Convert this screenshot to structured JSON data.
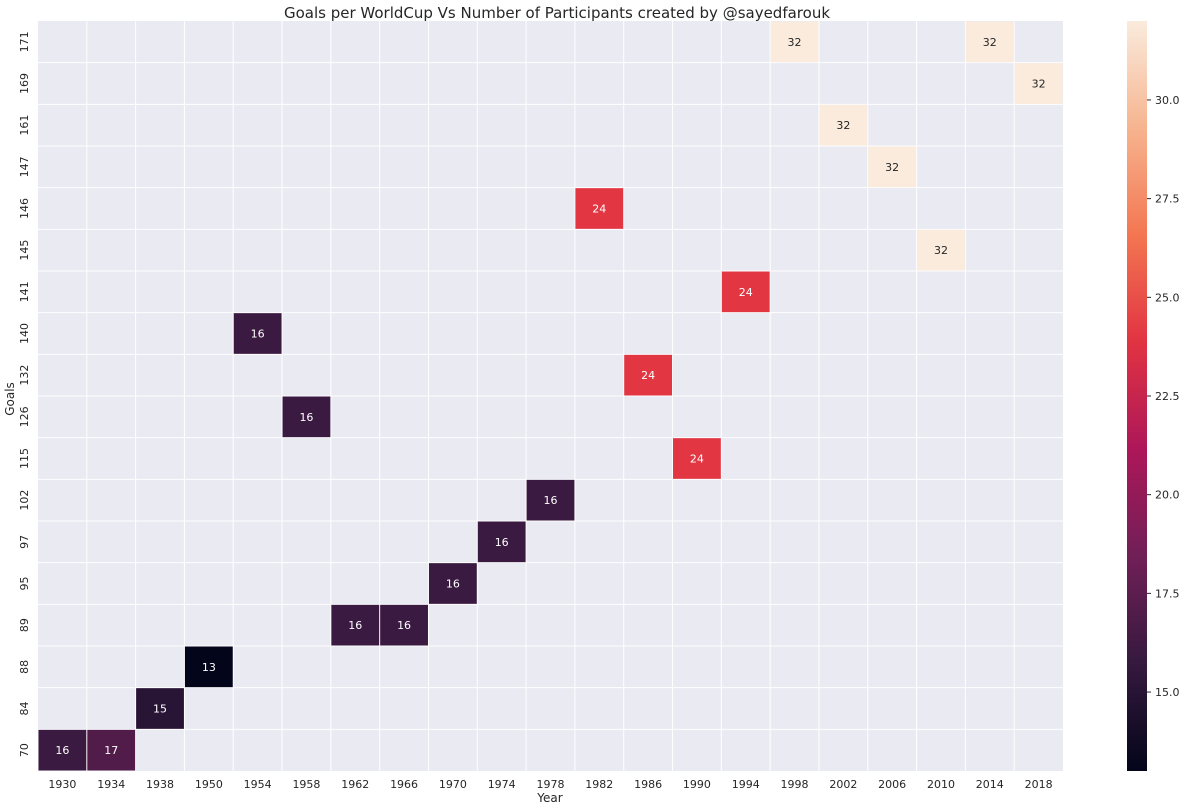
{
  "chart_data": {
    "type": "heatmap",
    "title": "Goals per WorldCup Vs Number of Participants       created by @sayedfarouk",
    "xlabel": "Year",
    "ylabel": "Goals",
    "x_categories": [
      "1930",
      "1934",
      "1938",
      "1950",
      "1954",
      "1958",
      "1962",
      "1966",
      "1970",
      "1974",
      "1978",
      "1982",
      "1986",
      "1990",
      "1994",
      "1998",
      "2002",
      "2006",
      "2010",
      "2014",
      "2018"
    ],
    "y_categories": [
      "171",
      "169",
      "161",
      "147",
      "146",
      "145",
      "141",
      "140",
      "132",
      "126",
      "115",
      "102",
      "97",
      "95",
      "89",
      "88",
      "84",
      "70"
    ],
    "cells": [
      {
        "x": "1930",
        "y": "70",
        "value": 16
      },
      {
        "x": "1934",
        "y": "70",
        "value": 17
      },
      {
        "x": "1938",
        "y": "84",
        "value": 15
      },
      {
        "x": "1950",
        "y": "88",
        "value": 13
      },
      {
        "x": "1954",
        "y": "140",
        "value": 16
      },
      {
        "x": "1958",
        "y": "126",
        "value": 16
      },
      {
        "x": "1962",
        "y": "89",
        "value": 16
      },
      {
        "x": "1966",
        "y": "89",
        "value": 16
      },
      {
        "x": "1970",
        "y": "95",
        "value": 16
      },
      {
        "x": "1974",
        "y": "97",
        "value": 16
      },
      {
        "x": "1978",
        "y": "102",
        "value": 16
      },
      {
        "x": "1982",
        "y": "146",
        "value": 24
      },
      {
        "x": "1986",
        "y": "132",
        "value": 24
      },
      {
        "x": "1990",
        "y": "115",
        "value": 24
      },
      {
        "x": "1994",
        "y": "141",
        "value": 24
      },
      {
        "x": "1998",
        "y": "171",
        "value": 32
      },
      {
        "x": "2002",
        "y": "161",
        "value": 32
      },
      {
        "x": "2006",
        "y": "147",
        "value": 32
      },
      {
        "x": "2010",
        "y": "145",
        "value": 32
      },
      {
        "x": "2014",
        "y": "171",
        "value": 32
      },
      {
        "x": "2018",
        "y": "169",
        "value": 32
      }
    ],
    "colorbar": {
      "range": [
        13,
        32
      ],
      "ticks": [
        "15.0",
        "17.5",
        "20.0",
        "22.5",
        "25.0",
        "27.5",
        "30.0"
      ],
      "tick_values": [
        15.0,
        17.5,
        20.0,
        22.5,
        25.0,
        27.5,
        30.0
      ],
      "colormap": "rocket",
      "stops": [
        "#03051a",
        "#35193e",
        "#701f57",
        "#ad1759",
        "#e13342",
        "#f37651",
        "#f6b48f",
        "#faebdd"
      ]
    },
    "background_color": "#eaeaf2",
    "grid": true,
    "legend": "colorbar right"
  }
}
